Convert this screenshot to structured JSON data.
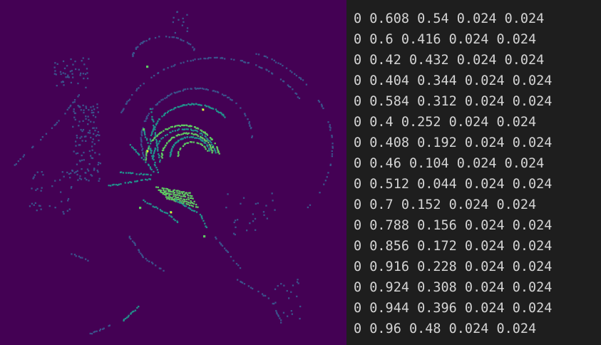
{
  "colors": {
    "heatmap_background": "#440154",
    "trace_low": "#3b528b",
    "trace_mid": "#21918c",
    "trace_high": "#5ec962",
    "trace_peak": "#fde725",
    "text_background": "#1e1e1e",
    "text_color": "#d4d4d4"
  },
  "image_panel": {
    "colormap": "viridis"
  },
  "text_panel": {
    "lines": [
      "0 0.608 0.54 0.024 0.024",
      "0 0.6 0.416 0.024 0.024",
      "0 0.42 0.432 0.024 0.024",
      "0 0.404 0.344 0.024 0.024",
      "0 0.584 0.312 0.024 0.024",
      "0 0.4 0.252 0.024 0.024",
      "0 0.408 0.192 0.024 0.024",
      "0 0.46 0.104 0.024 0.024",
      "0 0.512 0.044 0.024 0.024",
      "0 0.7 0.152 0.024 0.024",
      "0 0.788 0.156 0.024 0.024",
      "0 0.856 0.172 0.024 0.024",
      "0 0.916 0.228 0.024 0.024",
      "0 0.924 0.308 0.024 0.024",
      "0 0.944 0.396 0.024 0.024",
      "0 0.96 0.48 0.024 0.024"
    ]
  }
}
